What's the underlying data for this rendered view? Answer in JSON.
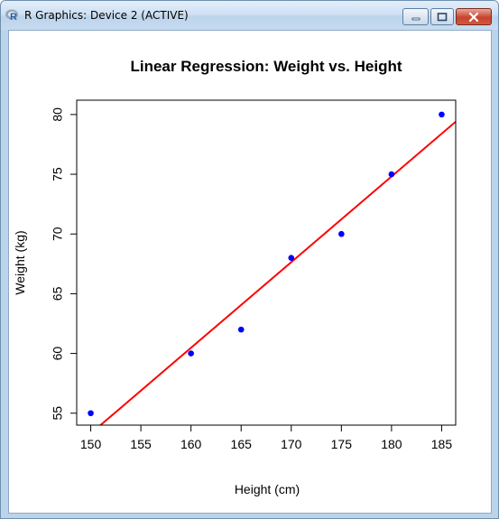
{
  "window": {
    "title": "R Graphics: Device 2 (ACTIVE)",
    "icon": "r-logo-icon",
    "controls": [
      "minimize",
      "maximize",
      "close"
    ]
  },
  "colors": {
    "points": "#0000ff",
    "line": "#ff0000",
    "titlebar": "#cfe0f3",
    "close_button": "#c7432f"
  },
  "chart_data": {
    "type": "scatter",
    "title": "Linear Regression: Weight vs. Height",
    "xlabel": "Height (cm)",
    "ylabel": "Weight (kg)",
    "xlim": [
      148.6,
      186.4
    ],
    "ylim": [
      54.0,
      81.2
    ],
    "xticks": [
      "150",
      "155",
      "160",
      "165",
      "170",
      "175",
      "180",
      "185"
    ],
    "yticks": [
      "55",
      "60",
      "65",
      "70",
      "75",
      "80"
    ],
    "series": [
      {
        "x": [
          150,
          160,
          165,
          170,
          175,
          180,
          185
        ],
        "y": [
          55,
          60,
          62,
          68,
          70,
          75,
          80
        ]
      }
    ],
    "regression_line": {
      "x": [
        148.6,
        186.4
      ],
      "y": [
        52.3,
        79.4
      ]
    },
    "grid": false,
    "legend": "none"
  }
}
